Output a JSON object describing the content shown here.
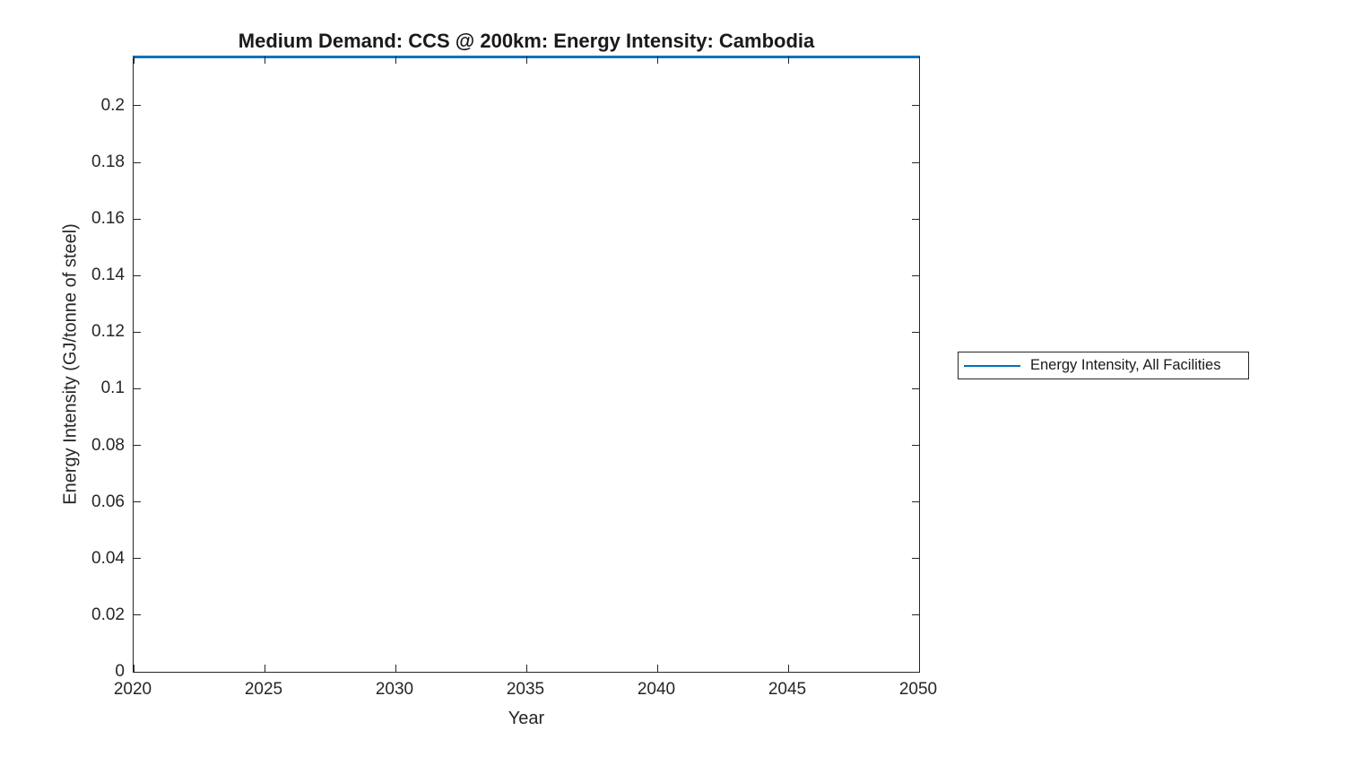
{
  "figure": {
    "title": "Medium Demand: CCS @ 200km: Energy Intensity: Cambodia"
  },
  "chart_data": {
    "type": "line",
    "title": "Medium Demand: CCS @ 200km: Energy Intensity: Cambodia",
    "xlabel": "Year",
    "ylabel": "Energy Intensity (GJ/tonne of steel)",
    "xlim": [
      2020,
      2050
    ],
    "ylim": [
      0,
      0.2174
    ],
    "grid": false,
    "xticks": [
      2020,
      2025,
      2030,
      2035,
      2040,
      2045,
      2050
    ],
    "xtick_labels": [
      "2020",
      "2025",
      "2030",
      "2035",
      "2040",
      "2045",
      "2050"
    ],
    "yticks": [
      0,
      0.02,
      0.04,
      0.06,
      0.08,
      0.1,
      0.12,
      0.14,
      0.16,
      0.18,
      0.2
    ],
    "ytick_labels": [
      "0",
      "0.02",
      "0.04",
      "0.06",
      "0.08",
      "0.1",
      "0.12",
      "0.14",
      "0.16",
      "0.18",
      "0.2"
    ],
    "series": [
      {
        "name": "Energy Intensity, All Facilities",
        "color": "#0072BD",
        "x": [
          2020,
          2050
        ],
        "y": [
          0.2174,
          0.2174
        ],
        "shape": "constant horizontal line clipped at top edge of axes"
      }
    ],
    "legend": {
      "position": "outside-right",
      "entries": [
        {
          "label": "Energy Intensity, All Facilities",
          "color": "#0072BD"
        }
      ]
    }
  },
  "colors": {
    "line": "#0072BD",
    "axis": "#262626",
    "text": "#262626",
    "background": "#ffffff"
  }
}
